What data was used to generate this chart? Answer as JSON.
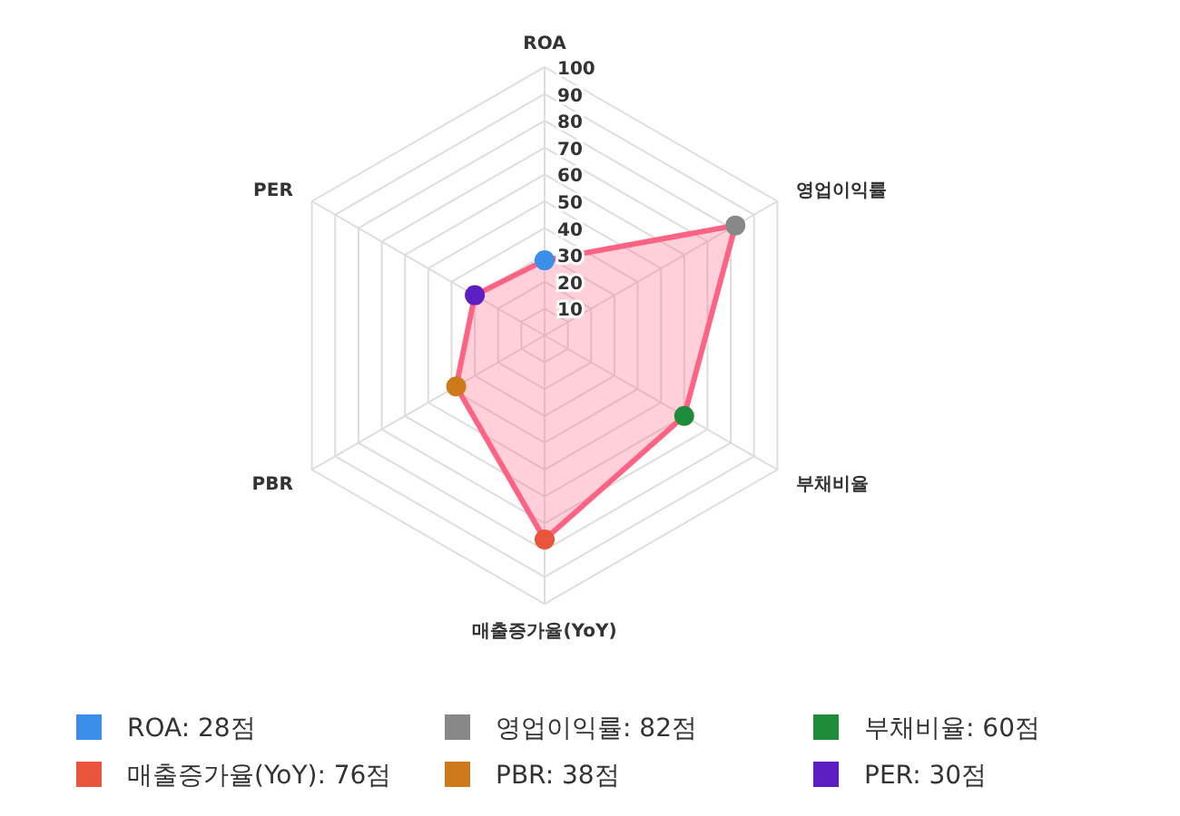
{
  "chart_data": {
    "type": "radar",
    "categories": [
      "ROA",
      "영업이익률",
      "부채비율",
      "매출증가율(YoY)",
      "PBR",
      "PER"
    ],
    "series": [
      {
        "color": "#ff6384",
        "values": [
          28,
          82,
          60,
          76,
          38,
          30
        ],
        "colors": [
          "#3b8fe8",
          "#888888",
          "#1e8c3a",
          "#e8553a",
          "#cc7a1a",
          "#5b1fc4"
        ]
      }
    ],
    "ylim": [
      0,
      100
    ],
    "yticks": [
      10,
      20,
      30,
      40,
      50,
      60,
      70,
      80,
      90,
      100
    ],
    "grid": true,
    "marker": "circle",
    "annotations": [
      "ROA: 28점",
      "영업이익률: 82점",
      "부채비율: 60점",
      "매출증가율(YoY): 76점",
      "PBR: 38점",
      "PER: 30점"
    ]
  }
}
